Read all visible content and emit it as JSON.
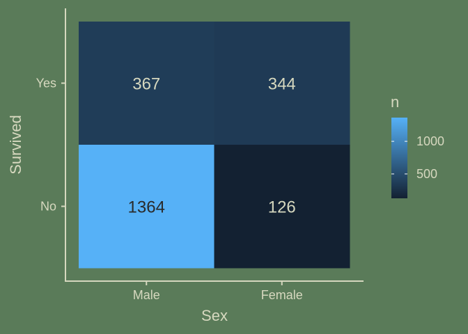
{
  "chart_data": {
    "type": "heatmap",
    "xlabel": "Sex",
    "ylabel": "Survived",
    "x_categories": [
      "Male",
      "Female"
    ],
    "y_categories": [
      "No",
      "Yes"
    ],
    "cells": [
      {
        "x": "Male",
        "y": "Yes",
        "value": 367
      },
      {
        "x": "Female",
        "y": "Yes",
        "value": 344
      },
      {
        "x": "Male",
        "y": "No",
        "value": 1364
      },
      {
        "x": "Female",
        "y": "No",
        "value": 126
      }
    ],
    "legend": {
      "title": "n",
      "ticks": [
        500,
        1000
      ],
      "low_color": "#132132",
      "high_color": "#56b1f7",
      "placement": "right"
    },
    "grid": false,
    "colors": {
      "background": "#5a7b59",
      "axis": "#d6d8bf",
      "label_dark": "#2a2a2a",
      "label_light": "#d6d8bf"
    }
  }
}
